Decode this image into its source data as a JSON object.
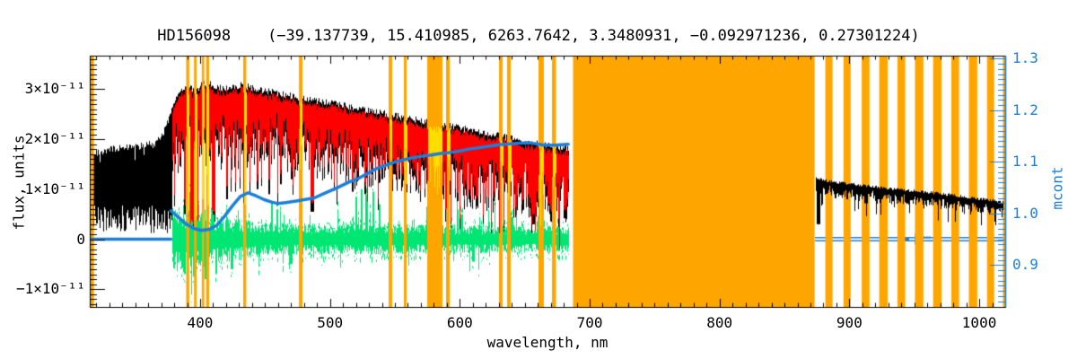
{
  "title": "HD156098    (−39.137739, 15.410985, 6263.7642, 3.3480931, −0.092971236, 0.27301224)",
  "colors": {
    "background": "#FFFFFF",
    "axis": "#000000",
    "observed": "#000000",
    "model": "#FF0000",
    "model_in_mask": "#FFDD00",
    "residual": "#00E673",
    "mcont_line": "#1C7FD9",
    "mask_band": "#FFA500"
  },
  "chart_data": {
    "type": "line",
    "title": "HD156098    (−39.137739, 15.410985, 6263.7642, 3.3480931, −0.092971236, 0.27301224)",
    "xlabel": "wavelength, nm",
    "ylabel_left": "flux, units",
    "ylabel_right": "mcont",
    "seed": 20,
    "x_range": [
      315,
      1020
    ],
    "y_flux_range_e11": [
      -1.355,
      3.672
    ],
    "y_right_range": [
      0.8187,
      1.3057
    ],
    "x_major_ticks": [
      400,
      500,
      600,
      700,
      800,
      900,
      1000
    ],
    "x_minor_step": 10,
    "y_left_major_ticks": [
      {
        "value": 3,
        "label": "3×10⁻¹¹"
      },
      {
        "value": 2,
        "label": "2×10⁻¹¹"
      },
      {
        "value": 1,
        "label": "1×10⁻¹¹"
      },
      {
        "value": 0,
        "label": "0"
      },
      {
        "value": -1,
        "label": "−1×10⁻¹¹"
      }
    ],
    "y_left_minor_step": 0.1,
    "y_right_major_ticks": [
      {
        "value": 1.3,
        "label": "1.3"
      },
      {
        "value": 1.2,
        "label": "1.2"
      },
      {
        "value": 1.1,
        "label": "1.1"
      },
      {
        "value": 1.0,
        "label": "1.0"
      },
      {
        "value": 0.9,
        "label": "0.9"
      }
    ],
    "y_right_minor_step": 0.01,
    "mask_bands_nm": [
      [
        315.0,
        318.2
      ],
      [
        389.3,
        391.6
      ],
      [
        395.3,
        397.3
      ],
      [
        401.3,
        403.2
      ],
      [
        404.6,
        406.9
      ],
      [
        433.2,
        435.5
      ],
      [
        476.1,
        478.8
      ],
      [
        545.2,
        547.9
      ],
      [
        556.9,
        559.0
      ],
      [
        574.9,
        586.6
      ],
      [
        589.4,
        592.2
      ],
      [
        630.2,
        633.0
      ],
      [
        636.4,
        639.2
      ],
      [
        660.6,
        664.7
      ],
      [
        671.0,
        674.0
      ],
      [
        687.2,
        873.2
      ],
      [
        881.5,
        887.0
      ],
      [
        895.5,
        901.0
      ],
      [
        909.5,
        915.5
      ],
      [
        923.0,
        929.5
      ],
      [
        937.0,
        943.0
      ],
      [
        950.5,
        957.0
      ],
      [
        964.5,
        971.0
      ],
      [
        978.5,
        984.5
      ],
      [
        992.0,
        998.5
      ],
      [
        1006.0,
        1011.5
      ],
      [
        1018.3,
        1020.0
      ]
    ],
    "observed_left": {
      "range_nm": [
        316.5,
        684
      ],
      "model_start_nm": 378.5,
      "top_envelope_e11": [
        [
          318,
          1.7
        ],
        [
          324,
          1.76
        ],
        [
          332,
          1.8
        ],
        [
          340,
          1.84
        ],
        [
          348,
          1.82
        ],
        [
          356,
          1.88
        ],
        [
          364,
          1.94
        ],
        [
          370,
          2.05
        ],
        [
          374,
          2.3
        ],
        [
          378,
          2.62
        ],
        [
          382,
          2.88
        ],
        [
          386,
          3.0
        ],
        [
          390,
          3.08
        ],
        [
          394,
          3.0
        ],
        [
          398,
          3.02
        ],
        [
          402,
          3.12
        ],
        [
          407,
          3.1
        ],
        [
          412,
          3.06
        ],
        [
          418,
          3.02
        ],
        [
          425,
          3.05
        ],
        [
          432,
          3.08
        ],
        [
          440,
          3.02
        ],
        [
          448,
          2.98
        ],
        [
          456,
          2.94
        ],
        [
          464,
          2.9
        ],
        [
          472,
          2.86
        ],
        [
          480,
          2.82
        ],
        [
          490,
          2.77
        ],
        [
          500,
          2.72
        ],
        [
          510,
          2.67
        ],
        [
          520,
          2.62
        ],
        [
          530,
          2.57
        ],
        [
          540,
          2.52
        ],
        [
          550,
          2.47
        ],
        [
          560,
          2.42
        ],
        [
          570,
          2.37
        ],
        [
          580,
          2.32
        ],
        [
          590,
          2.27
        ],
        [
          600,
          2.22
        ],
        [
          610,
          2.17
        ],
        [
          620,
          2.12
        ],
        [
          630,
          2.07
        ],
        [
          640,
          2.02
        ],
        [
          650,
          1.97
        ],
        [
          660,
          1.92
        ],
        [
          670,
          1.87
        ],
        [
          678,
          1.83
        ],
        [
          684,
          1.8
        ]
      ],
      "deep_lines": [
        [
          388,
          0.5,
          0.6
        ],
        [
          390.5,
          0.3,
          0.7
        ],
        [
          393.4,
          0.12,
          1.5
        ],
        [
          396.8,
          0.18,
          1.5
        ],
        [
          402,
          0.55,
          0.7
        ],
        [
          406,
          0.5,
          0.7
        ],
        [
          410.2,
          0.35,
          1.2
        ],
        [
          420.5,
          0.8,
          0.6
        ],
        [
          427,
          0.95,
          0.6
        ],
        [
          434,
          0.45,
          1.2
        ],
        [
          438,
          0.9,
          0.6
        ],
        [
          444,
          1.0,
          0.6
        ],
        [
          453,
          0.9,
          0.6
        ],
        [
          462,
          1.1,
          0.6
        ],
        [
          470,
          1.2,
          0.6
        ],
        [
          486.1,
          0.55,
          1.2
        ],
        [
          492,
          1.35,
          0.6
        ],
        [
          501,
          1.2,
          0.6
        ],
        [
          512,
          1.1,
          0.6
        ],
        [
          517,
          0.95,
          0.7
        ],
        [
          527,
          0.9,
          0.7
        ],
        [
          532,
          1.3,
          0.6
        ],
        [
          540,
          1.2,
          0.6
        ],
        [
          549,
          1.3,
          0.6
        ],
        [
          553,
          1.2,
          0.6
        ],
        [
          561,
          1.3,
          0.6
        ],
        [
          570,
          1.45,
          0.6
        ],
        [
          578,
          1.5,
          0.6
        ],
        [
          589,
          0.35,
          0.8
        ],
        [
          594,
          1.5,
          0.6
        ],
        [
          606,
          1.55,
          0.6
        ],
        [
          615,
          1.55,
          0.6
        ],
        [
          623,
          1.5,
          0.6
        ],
        [
          631,
          1.55,
          0.6
        ],
        [
          640,
          1.55,
          0.6
        ],
        [
          650,
          1.6,
          0.6
        ],
        [
          656.3,
          0.3,
          1.0
        ],
        [
          663,
          1.55,
          0.6
        ],
        [
          671,
          1.45,
          0.6
        ],
        [
          679,
          1.55,
          0.6
        ]
      ]
    },
    "observed_right": {
      "range_nm": [
        874,
        1018
      ],
      "top_envelope_e11": [
        [
          874,
          1.22
        ],
        [
          882,
          1.17
        ],
        [
          890,
          1.14
        ],
        [
          900,
          1.11
        ],
        [
          912,
          1.07
        ],
        [
          925,
          1.03
        ],
        [
          940,
          0.99
        ],
        [
          955,
          0.95
        ],
        [
          970,
          0.91
        ],
        [
          985,
          0.86
        ],
        [
          1000,
          0.81
        ],
        [
          1010,
          0.78
        ],
        [
          1018,
          0.75
        ]
      ],
      "dips": [
        [
          876,
          0.3,
          1.2
        ],
        [
          889,
          0.82,
          0.7
        ],
        [
          893,
          0.88,
          0.7
        ],
        [
          898,
          0.8,
          0.7
        ],
        [
          903,
          0.86,
          0.7
        ],
        [
          912,
          0.72,
          0.7
        ],
        [
          916,
          0.85,
          0.7
        ],
        [
          922,
          0.8,
          0.7
        ],
        [
          927,
          0.88,
          0.7
        ],
        [
          933,
          0.76,
          0.7
        ],
        [
          940,
          0.85,
          0.7
        ],
        [
          947,
          0.78,
          0.7
        ],
        [
          955,
          0.82,
          0.7
        ],
        [
          960,
          0.78,
          0.7
        ],
        [
          966,
          0.74,
          0.7
        ],
        [
          972,
          0.8,
          0.7
        ],
        [
          978,
          0.7,
          0.7
        ],
        [
          984,
          0.76,
          0.7
        ],
        [
          989,
          0.7,
          0.7
        ],
        [
          995,
          0.72,
          0.7
        ],
        [
          999,
          0.55,
          0.7
        ],
        [
          1004,
          0.64,
          0.7
        ],
        [
          1009,
          0.62,
          0.7
        ],
        [
          1014,
          0.6,
          0.7
        ]
      ]
    },
    "residual": {
      "range_nm": [
        378.5,
        684
      ],
      "halfwidth_e11": [
        [
          378,
          0.52
        ],
        [
          390,
          0.5
        ],
        [
          400,
          0.44
        ],
        [
          415,
          0.36
        ],
        [
          430,
          0.3
        ],
        [
          450,
          0.26
        ],
        [
          475,
          0.24
        ],
        [
          500,
          0.23
        ],
        [
          530,
          0.24
        ],
        [
          560,
          0.22
        ],
        [
          600,
          0.21
        ],
        [
          640,
          0.21
        ],
        [
          684,
          0.2
        ]
      ],
      "spikes_e11": [
        [
          392,
          0.95
        ],
        [
          396,
          0.8
        ],
        [
          398,
          0.7
        ],
        [
          455,
          0.75
        ],
        [
          459,
          0.6
        ],
        [
          520,
          0.85
        ],
        [
          524,
          1.0
        ],
        [
          528,
          0.9
        ],
        [
          533,
          0.95
        ],
        [
          538,
          0.7
        ],
        [
          546,
          0.6
        ],
        [
          575,
          0.5
        ],
        [
          601,
          0.5
        ],
        [
          640,
          0.45
        ],
        [
          388,
          -0.7
        ],
        [
          395,
          -0.75
        ],
        [
          404,
          -0.8
        ],
        [
          412,
          -0.7
        ],
        [
          424,
          -0.6
        ],
        [
          470,
          -0.5
        ],
        [
          610,
          -0.45
        ]
      ]
    },
    "mcont_curve": {
      "flat_left_nm": [
        315,
        377.5
      ],
      "flat_left_value": 0.95,
      "points": [
        [
          377.5,
          1.005
        ],
        [
          383,
          0.993
        ],
        [
          389,
          0.98
        ],
        [
          395,
          0.971
        ],
        [
          401,
          0.967
        ],
        [
          407,
          0.969
        ],
        [
          413,
          0.977
        ],
        [
          419,
          0.995
        ],
        [
          425,
          1.015
        ],
        [
          431,
          1.033
        ],
        [
          437,
          1.04
        ],
        [
          443,
          1.034
        ],
        [
          449,
          1.027
        ],
        [
          455,
          1.022
        ],
        [
          460,
          1.019
        ],
        [
          466,
          1.021
        ],
        [
          474,
          1.024
        ],
        [
          481,
          1.027
        ],
        [
          488,
          1.03
        ],
        [
          495,
          1.038
        ],
        [
          505,
          1.049
        ],
        [
          515,
          1.061
        ],
        [
          522,
          1.068
        ],
        [
          530,
          1.079
        ],
        [
          536,
          1.087
        ],
        [
          545,
          1.095
        ],
        [
          552,
          1.101
        ],
        [
          557,
          1.104
        ],
        [
          564,
          1.108
        ],
        [
          571,
          1.111
        ],
        [
          578,
          1.113
        ],
        [
          585,
          1.116
        ],
        [
          592,
          1.118
        ],
        [
          600,
          1.121
        ],
        [
          608,
          1.125
        ],
        [
          616,
          1.128
        ],
        [
          622,
          1.13
        ],
        [
          630,
          1.133
        ],
        [
          639,
          1.135
        ],
        [
          646,
          1.136
        ],
        [
          653,
          1.137
        ],
        [
          658,
          1.135
        ],
        [
          663,
          1.133
        ],
        [
          668,
          1.132
        ],
        [
          673,
          1.132
        ],
        [
          678,
          1.133
        ],
        [
          683.5,
          1.134
        ]
      ],
      "flat_right_nm": [
        873.5,
        1020
      ],
      "flat_right_value": 0.95,
      "flat_right_marks": {
        "thick_nm": [
          939,
          946
        ],
        "tick_nm": 951,
        "dots_nm": [
          953,
          961
        ]
      }
    }
  }
}
